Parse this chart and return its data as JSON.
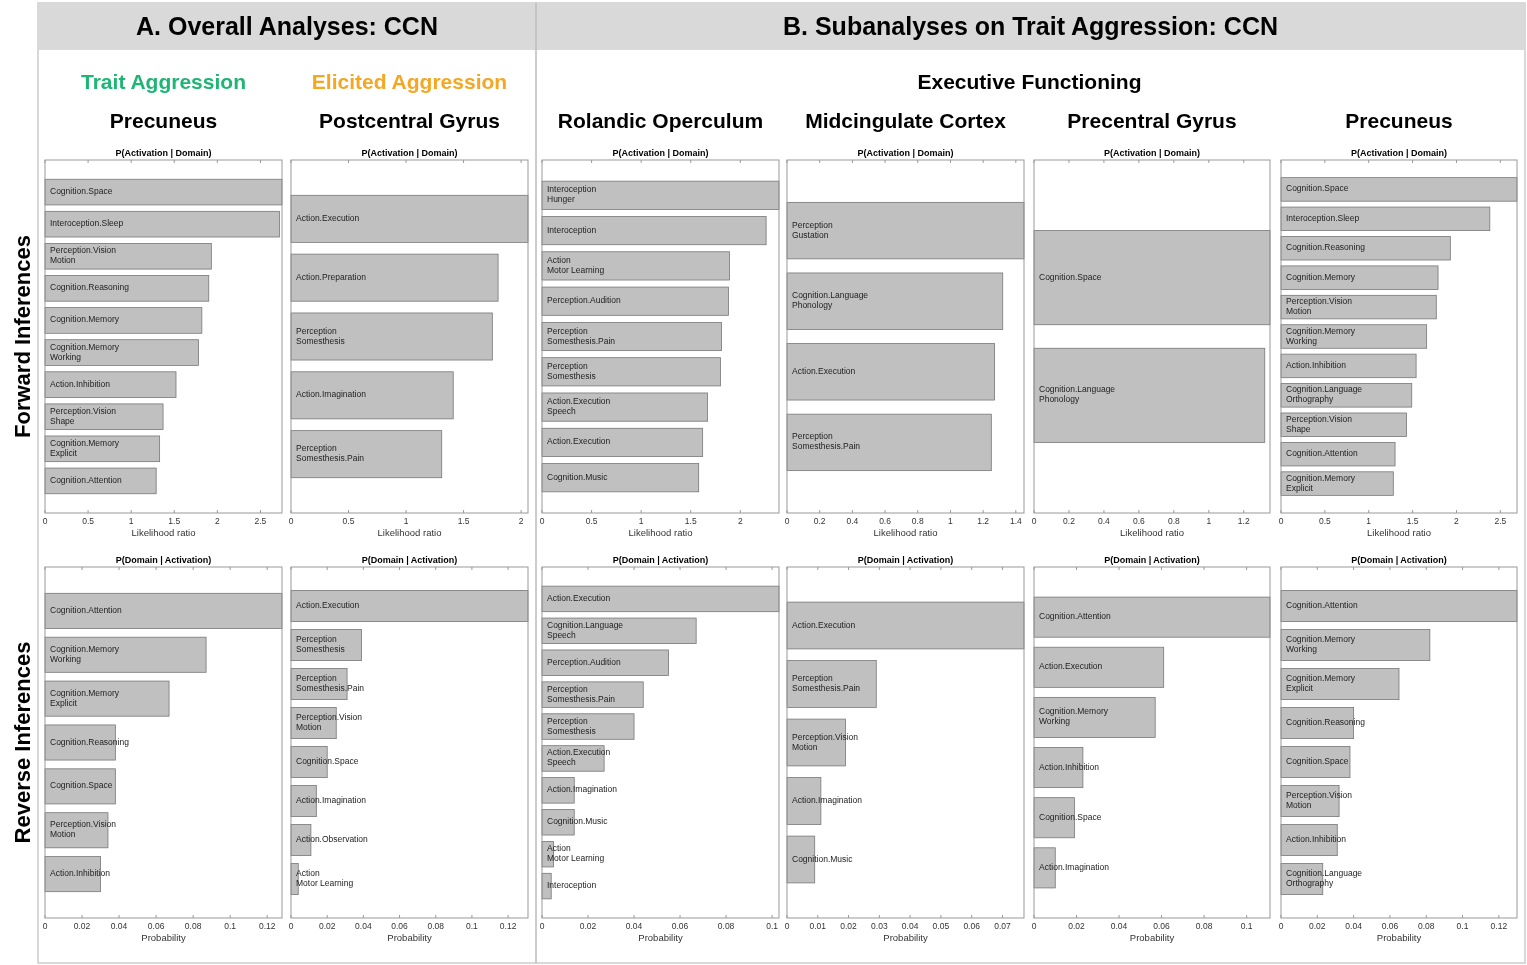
{
  "chart_data": [
    {
      "type": "bar",
      "orientation": "horizontal",
      "title": "P(Activation | Domain)",
      "xlabel": "Likelihood ratio",
      "color": "#c0c0c0",
      "xlim": [
        0,
        2.75
      ],
      "xticks": [
        0,
        0.5,
        1,
        1.5,
        2,
        2.5
      ],
      "annotations": [
        "Precuneus",
        "Trait Aggression",
        "A. Overall Analyses: CCN",
        "Forward Inferences"
      ],
      "categories": [
        "Cognition.Space",
        "Interoception.Sleep",
        "Perception.Vision\nMotion",
        "Cognition.Reasoning",
        "Cognition.Memory",
        "Cognition.Memory\nWorking",
        "Action.Inhibition",
        "Perception.Vision\nShape",
        "Cognition.Memory\nExplicit",
        "Cognition.Attention"
      ],
      "values": [
        2.75,
        2.72,
        1.93,
        1.9,
        1.82,
        1.78,
        1.52,
        1.37,
        1.33,
        1.29
      ]
    },
    {
      "type": "bar",
      "orientation": "horizontal",
      "title": "P(Activation | Domain)",
      "xlabel": "Likelihood ratio",
      "color": "#c0c0c0",
      "xlim": [
        0,
        2.06
      ],
      "xticks": [
        0,
        0.5,
        1,
        1.5,
        2
      ],
      "annotations": [
        "Postcentral Gyrus",
        "Elicited Aggression"
      ],
      "categories": [
        "Action.Execution",
        "Action.Preparation",
        "Perception\nSomesthesis",
        "Action.Imagination",
        "Perception\nSomesthesis.Pain"
      ],
      "values": [
        2.06,
        1.8,
        1.75,
        1.41,
        1.31
      ]
    },
    {
      "type": "bar",
      "orientation": "horizontal",
      "title": "P(Activation | Domain)",
      "xlabel": "Likelihood ratio",
      "color": "#c0c0c0",
      "xlim": [
        0,
        2.39
      ],
      "xticks": [
        0,
        0.5,
        1,
        1.5,
        2
      ],
      "annotations": [
        "Rolandic Operculum",
        "Executive Functioning",
        "B. Subanalyses on Trait Aggression: CCN"
      ],
      "categories": [
        "Interoception\nHunger",
        "Interoception",
        "Action\nMotor Learning",
        "Perception.Audition",
        "Perception\nSomesthesis.Pain",
        "Perception\nSomesthesis",
        "Action.Execution\nSpeech",
        "Action.Execution",
        "Cognition.Music"
      ],
      "values": [
        2.39,
        2.26,
        1.89,
        1.88,
        1.81,
        1.8,
        1.67,
        1.62,
        1.58
      ]
    },
    {
      "type": "bar",
      "orientation": "horizontal",
      "title": "P(Activation | Domain)",
      "xlabel": "Likelihood ratio",
      "color": "#c0c0c0",
      "xlim": [
        0,
        1.45
      ],
      "xticks": [
        0,
        0.2,
        0.4,
        0.6,
        0.8,
        1,
        1.2,
        1.4
      ],
      "annotations": [
        "Midcingulate Cortex"
      ],
      "categories": [
        "Perception\nGustation",
        "Cognition.Language\nPhonology",
        "Action.Execution",
        "Perception\nSomesthesis.Pain"
      ],
      "values": [
        1.45,
        1.32,
        1.27,
        1.25
      ]
    },
    {
      "type": "bar",
      "orientation": "horizontal",
      "title": "P(Activation | Domain)",
      "xlabel": "Likelihood ratio",
      "color": "#c0c0c0",
      "xlim": [
        0,
        1.35
      ],
      "xticks": [
        0,
        0.2,
        0.4,
        0.6,
        0.8,
        1,
        1.2
      ],
      "annotations": [
        "Precentral Gyrus"
      ],
      "categories": [
        "Cognition.Space",
        "Cognition.Language\nPhonology"
      ],
      "values": [
        1.35,
        1.32
      ]
    },
    {
      "type": "bar",
      "orientation": "horizontal",
      "title": "P(Activation | Domain)",
      "xlabel": "Likelihood ratio",
      "color": "#c0c0c0",
      "xlim": [
        0,
        2.69
      ],
      "xticks": [
        0,
        0.5,
        1,
        1.5,
        2,
        2.5
      ],
      "annotations": [
        "Precuneus"
      ],
      "categories": [
        "Cognition.Space",
        "Interoception.Sleep",
        "Cognition.Reasoning",
        "Cognition.Memory",
        "Perception.Vision\nMotion",
        "Cognition.Memory\nWorking",
        "Action.Inhibition",
        "Cognition.Language\nOrthography",
        "Perception.Vision\nShape",
        "Cognition.Attention",
        "Cognition.Memory\nExplicit"
      ],
      "values": [
        2.69,
        2.38,
        1.93,
        1.79,
        1.77,
        1.66,
        1.54,
        1.49,
        1.43,
        1.3,
        1.28
      ]
    },
    {
      "type": "bar",
      "orientation": "horizontal",
      "title": "P(Domain | Activation)",
      "xlabel": "Probability",
      "color": "#c0c0c0",
      "xlim": [
        0,
        0.128
      ],
      "xticks": [
        0,
        0.02,
        0.04,
        0.06,
        0.08,
        0.1,
        0.12
      ],
      "annotations": [
        "Reverse Inferences"
      ],
      "categories": [
        "Cognition.Attention",
        "Cognition.Memory\nWorking",
        "Cognition.Memory\nExplicit",
        "Cognition.Reasoning",
        "Cognition.Space",
        "Perception.Vision\nMotion",
        "Action.Inhibition"
      ],
      "values": [
        0.128,
        0.087,
        0.067,
        0.038,
        0.038,
        0.034,
        0.03
      ]
    },
    {
      "type": "bar",
      "orientation": "horizontal",
      "title": "P(Domain | Activation)",
      "xlabel": "Probability",
      "color": "#c0c0c0",
      "xlim": [
        0,
        0.131
      ],
      "xticks": [
        0,
        0.02,
        0.04,
        0.06,
        0.08,
        0.1,
        0.12
      ],
      "categories": [
        "Action.Execution",
        "Perception\nSomesthesis",
        "Perception\nSomesthesis.Pain",
        "Perception.Vision\nMotion",
        "Cognition.Space",
        "Action.Imagination",
        "Action.Observation",
        "Action\nMotor Learning"
      ],
      "values": [
        0.131,
        0.039,
        0.031,
        0.025,
        0.02,
        0.014,
        0.011,
        0.004
      ]
    },
    {
      "type": "bar",
      "orientation": "horizontal",
      "title": "P(Domain | Activation)",
      "xlabel": "Probability",
      "color": "#c0c0c0",
      "xlim": [
        0,
        0.103
      ],
      "xticks": [
        0,
        0.02,
        0.04,
        0.06,
        0.08,
        0.1
      ],
      "categories": [
        "Action.Execution",
        "Cognition.Language\nSpeech",
        "Perception.Audition",
        "Perception\nSomesthesis.Pain",
        "Perception\nSomesthesis",
        "Action.Execution\nSpeech",
        "Action.Imagination",
        "Cognition.Music",
        "Action\nMotor Learning",
        "Interoception"
      ],
      "values": [
        0.103,
        0.067,
        0.055,
        0.044,
        0.04,
        0.027,
        0.014,
        0.014,
        0.005,
        0.004
      ]
    },
    {
      "type": "bar",
      "orientation": "horizontal",
      "title": "P(Domain | Activation)",
      "xlabel": "Probability",
      "color": "#c0c0c0",
      "xlim": [
        0,
        0.077
      ],
      "xticks": [
        0,
        0.01,
        0.02,
        0.03,
        0.04,
        0.05,
        0.06,
        0.07
      ],
      "categories": [
        "Action.Execution",
        "Perception\nSomesthesis.Pain",
        "Perception.Vision\nMotion",
        "Action.Imagination",
        "Cognition.Music"
      ],
      "values": [
        0.077,
        0.029,
        0.019,
        0.011,
        0.009
      ]
    },
    {
      "type": "bar",
      "orientation": "horizontal",
      "title": "P(Domain | Activation)",
      "xlabel": "Probability",
      "color": "#c0c0c0",
      "xlim": [
        0,
        0.111
      ],
      "xticks": [
        0,
        0.02,
        0.04,
        0.06,
        0.08,
        0.1
      ],
      "categories": [
        "Cognition.Attention",
        "Action.Execution",
        "Cognition.Memory\nWorking",
        "Action.Inhibition",
        "Cognition.Space",
        "Action.Imagination"
      ],
      "values": [
        0.111,
        0.061,
        0.057,
        0.023,
        0.019,
        0.01
      ]
    },
    {
      "type": "bar",
      "orientation": "horizontal",
      "title": "P(Domain | Activation)",
      "xlabel": "Probability",
      "color": "#c0c0c0",
      "xlim": [
        0,
        0.13
      ],
      "xticks": [
        0,
        0.02,
        0.04,
        0.06,
        0.08,
        0.1,
        0.12
      ],
      "categories": [
        "Cognition.Attention",
        "Cognition.Memory\nWorking",
        "Cognition.Memory\nExplicit",
        "Cognition.Reasoning",
        "Cognition.Space",
        "Perception.Vision\nMotion",
        "Action.Inhibition",
        "Cognition.Language\nOrthography"
      ],
      "values": [
        0.13,
        0.082,
        0.065,
        0.04,
        0.038,
        0.032,
        0.031,
        0.023
      ]
    }
  ]
}
